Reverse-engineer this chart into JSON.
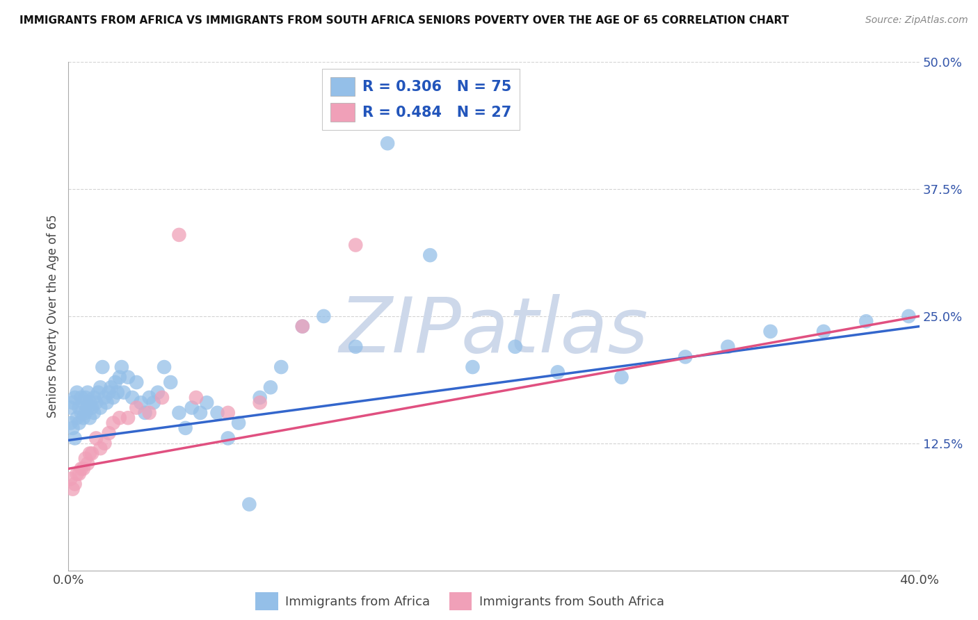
{
  "title": "IMMIGRANTS FROM AFRICA VS IMMIGRANTS FROM SOUTH AFRICA SENIORS POVERTY OVER THE AGE OF 65 CORRELATION CHART",
  "source": "Source: ZipAtlas.com",
  "ylabel": "Seniors Poverty Over the Age of 65",
  "xlim": [
    0.0,
    0.4
  ],
  "ylim": [
    0.0,
    0.5
  ],
  "xticks": [
    0.0,
    0.08,
    0.16,
    0.24,
    0.32,
    0.4
  ],
  "yticks": [
    0.0,
    0.125,
    0.25,
    0.375,
    0.5
  ],
  "xticklabels": [
    "0.0%",
    "",
    "",
    "",
    "",
    "40.0%"
  ],
  "yticklabels": [
    "",
    "12.5%",
    "25.0%",
    "37.5%",
    "50.0%"
  ],
  "background_color": "#ffffff",
  "grid_color": "#c8c8c8",
  "watermark_text": "ZIPatlas",
  "watermark_color": "#cdd8ea",
  "series": [
    {
      "name": "Immigrants from Africa",
      "R": 0.306,
      "N": 75,
      "color": "#94bfe8",
      "line_color": "#3366cc",
      "x": [
        0.001,
        0.001,
        0.002,
        0.002,
        0.003,
        0.003,
        0.004,
        0.004,
        0.005,
        0.005,
        0.006,
        0.006,
        0.007,
        0.007,
        0.008,
        0.008,
        0.009,
        0.009,
        0.01,
        0.01,
        0.011,
        0.012,
        0.012,
        0.013,
        0.014,
        0.015,
        0.015,
        0.016,
        0.017,
        0.018,
        0.019,
        0.02,
        0.021,
        0.022,
        0.023,
        0.024,
        0.025,
        0.026,
        0.028,
        0.03,
        0.032,
        0.034,
        0.036,
        0.038,
        0.04,
        0.042,
        0.045,
        0.048,
        0.052,
        0.055,
        0.058,
        0.062,
        0.065,
        0.07,
        0.075,
        0.08,
        0.085,
        0.09,
        0.095,
        0.1,
        0.11,
        0.12,
        0.135,
        0.15,
        0.17,
        0.19,
        0.21,
        0.23,
        0.26,
        0.29,
        0.31,
        0.33,
        0.355,
        0.375,
        0.395
      ],
      "y": [
        0.145,
        0.16,
        0.14,
        0.165,
        0.13,
        0.17,
        0.15,
        0.175,
        0.145,
        0.16,
        0.155,
        0.17,
        0.15,
        0.165,
        0.155,
        0.17,
        0.16,
        0.175,
        0.15,
        0.165,
        0.16,
        0.155,
        0.17,
        0.165,
        0.175,
        0.16,
        0.18,
        0.2,
        0.17,
        0.165,
        0.175,
        0.18,
        0.17,
        0.185,
        0.175,
        0.19,
        0.2,
        0.175,
        0.19,
        0.17,
        0.185,
        0.165,
        0.155,
        0.17,
        0.165,
        0.175,
        0.2,
        0.185,
        0.155,
        0.14,
        0.16,
        0.155,
        0.165,
        0.155,
        0.13,
        0.145,
        0.065,
        0.17,
        0.18,
        0.2,
        0.24,
        0.25,
        0.22,
        0.42,
        0.31,
        0.2,
        0.22,
        0.195,
        0.19,
        0.21,
        0.22,
        0.235,
        0.235,
        0.245,
        0.25
      ]
    },
    {
      "name": "Immigrants from South Africa",
      "R": 0.484,
      "N": 27,
      "color": "#f0a0b8",
      "line_color": "#e05080",
      "x": [
        0.001,
        0.002,
        0.003,
        0.004,
        0.005,
        0.006,
        0.007,
        0.008,
        0.009,
        0.01,
        0.011,
        0.013,
        0.015,
        0.017,
        0.019,
        0.021,
        0.024,
        0.028,
        0.032,
        0.038,
        0.044,
        0.052,
        0.06,
        0.075,
        0.09,
        0.11,
        0.135
      ],
      "y": [
        0.09,
        0.08,
        0.085,
        0.095,
        0.095,
        0.1,
        0.1,
        0.11,
        0.105,
        0.115,
        0.115,
        0.13,
        0.12,
        0.125,
        0.135,
        0.145,
        0.15,
        0.15,
        0.16,
        0.155,
        0.17,
        0.33,
        0.17,
        0.155,
        0.165,
        0.24,
        0.32
      ]
    }
  ],
  "blue_line": {
    "x0": 0.0,
    "y0": 0.128,
    "x1": 0.4,
    "y1": 0.24
  },
  "pink_line": {
    "x0": 0.0,
    "y0": 0.1,
    "x1": 0.4,
    "y1": 0.25
  }
}
